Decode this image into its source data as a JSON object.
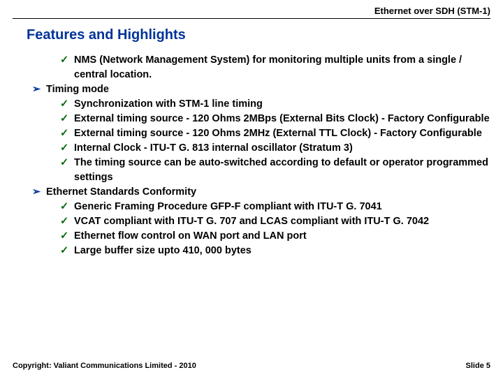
{
  "header": {
    "title": "Ethernet over SDH (STM-1)"
  },
  "section": {
    "title": "Features and Highlights"
  },
  "bullets": {
    "check": "✓",
    "arrow": "➢"
  },
  "colors": {
    "accent": "#003399",
    "check": "#006600",
    "text": "#000000",
    "background": "#ffffff",
    "rule": "#000000"
  },
  "items": [
    {
      "level": 1,
      "marker": "check",
      "text": "NMS (Network Management System) for monitoring multiple units from a single / central location."
    },
    {
      "level": 0,
      "marker": "arrow",
      "text": "Timing mode"
    },
    {
      "level": 1,
      "marker": "check",
      "text": "Synchronization with STM-1 line timing"
    },
    {
      "level": 1,
      "marker": "check",
      "text": "External timing source - 120 Ohms 2MBps (External Bits Clock) - Factory Configurable"
    },
    {
      "level": 1,
      "marker": "check",
      "text": "External timing source - 120 Ohms 2MHz (External TTL Clock) - Factory Configurable"
    },
    {
      "level": 1,
      "marker": "check",
      "text": "Internal Clock - ITU-T G. 813 internal oscillator (Stratum 3)"
    },
    {
      "level": 1,
      "marker": "check",
      "text": "The timing source can be auto-switched according to default or operator programmed settings"
    },
    {
      "level": 0,
      "marker": "arrow",
      "text": "Ethernet Standards Conformity"
    },
    {
      "level": 1,
      "marker": "check",
      "text": "Generic Framing Procedure GFP-F compliant with ITU-T G. 7041"
    },
    {
      "level": 1,
      "marker": "check",
      "text": "VCAT compliant with ITU-T G. 707 and LCAS compliant with ITU-T G. 7042"
    },
    {
      "level": 1,
      "marker": "check",
      "text": "Ethernet flow control on WAN port and LAN port"
    },
    {
      "level": 1,
      "marker": "check",
      "text": "Large buffer size upto 410, 000 bytes"
    }
  ],
  "footer": {
    "copyright": "Copyright: Valiant Communications Limited - 2010",
    "slide": "Slide 5"
  }
}
